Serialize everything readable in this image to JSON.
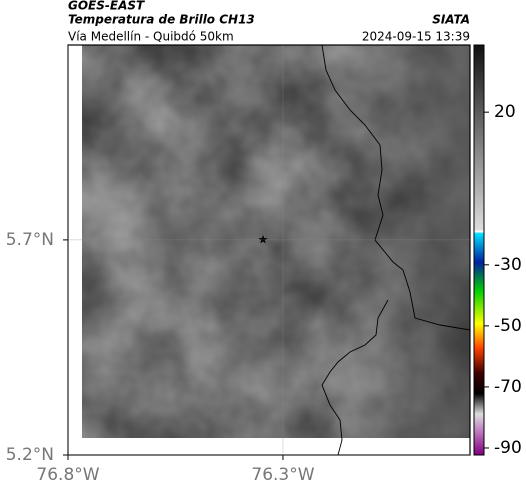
{
  "header": {
    "satellite": "GOES-EAST",
    "title": "Temperatura de Brillo CH13",
    "subtitle": "Vía Medellín - Quibdó 50km",
    "source": "SIATA",
    "datetime": "2024-09-15 13:39"
  },
  "map": {
    "xlim": [
      -76.8,
      -75.865
    ],
    "ylim": [
      5.2,
      6.153
    ],
    "xticks": [
      {
        "value": -76.8,
        "label": "76.8°W"
      },
      {
        "value": -76.3,
        "label": "76.3°W"
      }
    ],
    "yticks": [
      {
        "value": 5.2,
        "label": "5.2°N"
      },
      {
        "value": 5.7,
        "label": "5.7°N"
      }
    ]
  },
  "colorbar": {
    "lim": [
      -92.3,
      42
    ],
    "ticks": [
      20,
      -30,
      -50,
      -70,
      -90
    ]
  }
}
